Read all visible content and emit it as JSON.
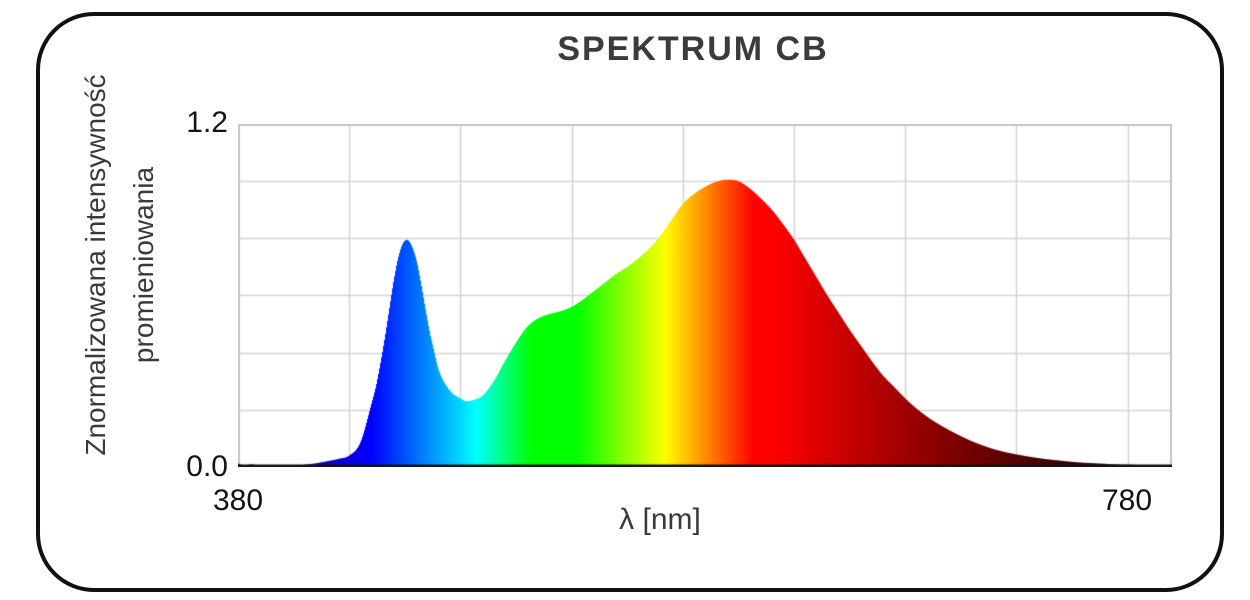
{
  "chart": {
    "title": "SPEKTRUM CB",
    "x_axis": {
      "label": "λ [nm]",
      "tick_labels": [
        "380",
        "780"
      ]
    },
    "y_axis": {
      "label_line1": "Znormalizowana intensywność",
      "label_line2": "promieniowania",
      "tick_labels": [
        "1.2",
        "0.0"
      ]
    }
  },
  "chart_data": {
    "type": "area",
    "title": "SPEKTRUM CB",
    "xlabel": "λ [nm]",
    "ylabel": "Znormalizowana intensywność promieniowania",
    "xlim": [
      380,
      800
    ],
    "ylim": [
      0,
      1.2
    ],
    "xticks_labeled": [
      380,
      780
    ],
    "yticks_labeled": [
      0.0,
      1.2
    ],
    "grid": {
      "x_step_nm": 50,
      "y_step": 0.2,
      "color": "#d6d6d6",
      "border_color": "#c6c6c6"
    },
    "axis_colors": {
      "axis_line": "#141414",
      "label_text": "#3a3a3a",
      "tick_text": "#141414"
    },
    "series_name": "Znormalizowana intensywność promieniowania",
    "color_mode": "per-wavelength visible-spectrum colors",
    "features": {
      "blue_peak": {
        "nm": 455,
        "value": 0.8
      },
      "cyan_dip": {
        "nm": 483,
        "value": 0.23
      },
      "green_shoulder": {
        "nm": 515,
        "value": 0.52
      },
      "main_peak": {
        "nm": 600,
        "value": 1.0
      }
    },
    "wavelengths_nm": [
      380,
      383,
      386,
      390,
      394,
      397,
      401,
      405,
      410,
      415,
      420,
      425,
      430,
      435,
      440,
      442,
      444,
      446,
      448,
      450,
      452,
      454,
      456,
      458,
      460,
      462,
      464,
      466,
      468,
      470,
      475,
      480,
      483,
      486,
      490,
      495,
      500,
      505,
      510,
      515,
      520,
      525,
      530,
      535,
      540,
      545,
      550,
      555,
      560,
      565,
      570,
      575,
      580,
      585,
      590,
      595,
      600,
      605,
      610,
      615,
      620,
      625,
      630,
      635,
      640,
      645,
      650,
      655,
      660,
      665,
      670,
      675,
      680,
      685,
      690,
      695,
      700,
      705,
      710,
      715,
      720,
      725,
      730,
      735,
      740,
      745,
      750,
      755,
      760,
      765,
      770,
      775,
      780,
      790,
      800
    ],
    "intensities": [
      0.012,
      0.005,
      0.009,
      0.004,
      0.007,
      0.001,
      0.002,
      0.004,
      0.008,
      0.013,
      0.02,
      0.028,
      0.04,
      0.085,
      0.22,
      0.28,
      0.36,
      0.45,
      0.55,
      0.65,
      0.73,
      0.78,
      0.795,
      0.775,
      0.73,
      0.655,
      0.565,
      0.48,
      0.41,
      0.345,
      0.27,
      0.24,
      0.23,
      0.235,
      0.25,
      0.3,
      0.37,
      0.435,
      0.49,
      0.52,
      0.535,
      0.545,
      0.56,
      0.585,
      0.615,
      0.645,
      0.675,
      0.7,
      0.73,
      0.765,
      0.81,
      0.865,
      0.92,
      0.955,
      0.98,
      0.998,
      1.005,
      1.0,
      0.975,
      0.94,
      0.9,
      0.85,
      0.795,
      0.73,
      0.665,
      0.6,
      0.54,
      0.48,
      0.425,
      0.37,
      0.32,
      0.28,
      0.24,
      0.205,
      0.175,
      0.15,
      0.128,
      0.108,
      0.09,
      0.075,
      0.062,
      0.052,
      0.044,
      0.037,
      0.031,
      0.026,
      0.022,
      0.018,
      0.015,
      0.013,
      0.011,
      0.009,
      0.008,
      0.006,
      0.005
    ]
  }
}
